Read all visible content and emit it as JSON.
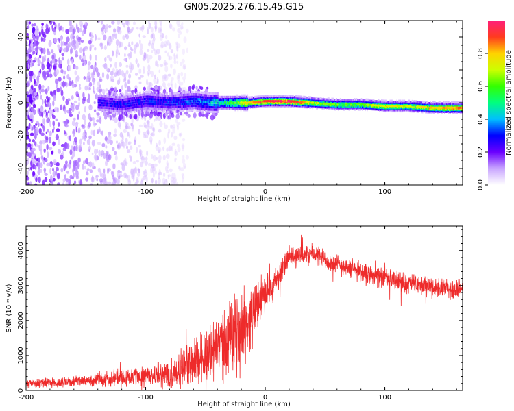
{
  "figure": {
    "title": "GN05.2025.276.15.45.G15"
  },
  "colors": {
    "snr_line": "#ee2b2b",
    "axis": "#000000",
    "colorbar_stops": [
      "#ffffff",
      "#c9a6ff",
      "#6a00ff",
      "#0000ff",
      "#00bfff",
      "#00ff7f",
      "#33ff00",
      "#ccff00",
      "#ffd200",
      "#ff3b1f",
      "#ff1f7a"
    ]
  },
  "chart_data": [
    {
      "type": "heatmap",
      "name": "spectrogram",
      "title": "GN05.2025.276.15.45.G15",
      "xlabel": "Height of straight line (km)",
      "ylabel": "Frequency (Hz)",
      "xlim": [
        -200,
        165
      ],
      "ylim": [
        -50,
        50
      ],
      "x_ticks": [
        -200,
        -100,
        0,
        100
      ],
      "y_ticks": [
        -40,
        -20,
        0,
        20,
        40
      ],
      "ridge": {
        "description_points_x": [
          -140,
          -120,
          -100,
          -80,
          -60,
          -45,
          -30,
          -15,
          0,
          20,
          40,
          60,
          80,
          100,
          120,
          140,
          165
        ],
        "center_freq_hz": [
          0,
          -1,
          1,
          0,
          1,
          0,
          0,
          0,
          1,
          1,
          0,
          -1,
          -1,
          -2,
          -2,
          -3,
          -3
        ],
        "peak_amplitude": [
          0.25,
          0.28,
          0.28,
          0.3,
          0.32,
          0.4,
          0.55,
          0.75,
          0.9,
          0.95,
          0.65,
          0.6,
          0.6,
          0.7,
          0.65,
          0.75,
          0.8
        ]
      },
      "noise_region_x": [
        -200,
        -75
      ],
      "colorbar": {
        "label": "Normalized spectral amplitude",
        "range": [
          0,
          1
        ],
        "ticks": [
          0.0,
          0.2,
          0.4,
          0.6,
          0.8
        ]
      }
    },
    {
      "type": "line",
      "name": "snr",
      "xlabel": "Height of straight line (km)",
      "ylabel": "SNR (10 * v/v)",
      "xlim": [
        -200,
        165
      ],
      "ylim": [
        0,
        4700
      ],
      "x_ticks": [
        -200,
        -100,
        0,
        100
      ],
      "y_ticks": [
        0,
        1000,
        2000,
        3000,
        4000
      ],
      "envelope": {
        "x": [
          -200,
          -160,
          -140,
          -120,
          -100,
          -80,
          -60,
          -40,
          -20,
          -10,
          0,
          10,
          20,
          40,
          60,
          80,
          100,
          120,
          140,
          165
        ],
        "mean": [
          200,
          250,
          300,
          380,
          400,
          450,
          800,
          1300,
          1700,
          2200,
          2800,
          3200,
          3800,
          3900,
          3600,
          3400,
          3200,
          3050,
          2950,
          2850
        ],
        "spread": [
          150,
          180,
          250,
          320,
          350,
          500,
          800,
          1200,
          1400,
          1000,
          600,
          450,
          400,
          350,
          350,
          350,
          350,
          350,
          350,
          350
        ]
      }
    }
  ]
}
